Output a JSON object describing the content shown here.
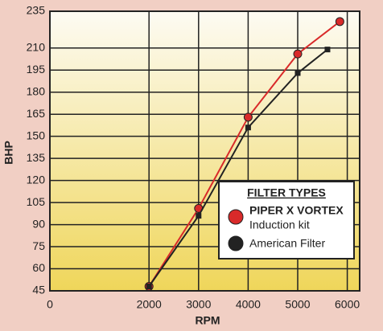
{
  "chart_data": {
    "type": "line",
    "x_label": "RPM",
    "y_label": "BHP",
    "xlim": [
      0,
      6250
    ],
    "ylim": [
      45,
      235
    ],
    "xticks": [
      0,
      2000,
      3000,
      4000,
      5000,
      6000
    ],
    "yticks": [
      45,
      60,
      75,
      90,
      105,
      120,
      135,
      150,
      165,
      180,
      195,
      210,
      235
    ],
    "grid": true,
    "legend_title": "FILTER TYPES",
    "series": [
      {
        "name": "PIPER X VORTEX",
        "note": "Induction kit",
        "color": "#d92a2a",
        "marker": "circle",
        "x": [
          2000,
          3000,
          4000,
          5000,
          5850
        ],
        "values": [
          48,
          101,
          163,
          206,
          228
        ]
      },
      {
        "name": "American Filter",
        "color": "#222222",
        "marker": "square",
        "x": [
          2000,
          3000,
          4000,
          5000,
          5600
        ],
        "values": [
          48,
          96,
          156,
          193,
          209
        ]
      }
    ]
  }
}
